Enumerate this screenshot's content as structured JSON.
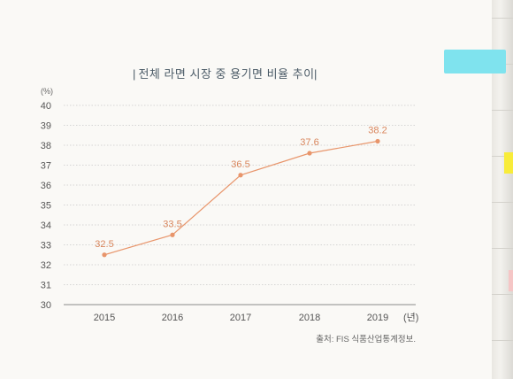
{
  "chart_data": {
    "type": "line",
    "title": "전체 라면 시장 중 용기면 비율 추이",
    "y_unit": "(%)",
    "x_unit": "(년)",
    "categories": [
      "2015",
      "2016",
      "2017",
      "2018",
      "2019"
    ],
    "series": [
      {
        "values": [
          32.5,
          33.5,
          36.5,
          37.6,
          38.2
        ],
        "color": "#e8956b"
      }
    ],
    "data_labels": [
      "32.5",
      "33.5",
      "36.5",
      "37.6",
      "38.2"
    ],
    "ylim": [
      30,
      40
    ],
    "yticks": [
      "40",
      "39",
      "38",
      "37",
      "36",
      "35",
      "34",
      "33",
      "32",
      "31",
      "30"
    ],
    "grid": true,
    "source": "출처: FIS 식품산업통계정보."
  }
}
